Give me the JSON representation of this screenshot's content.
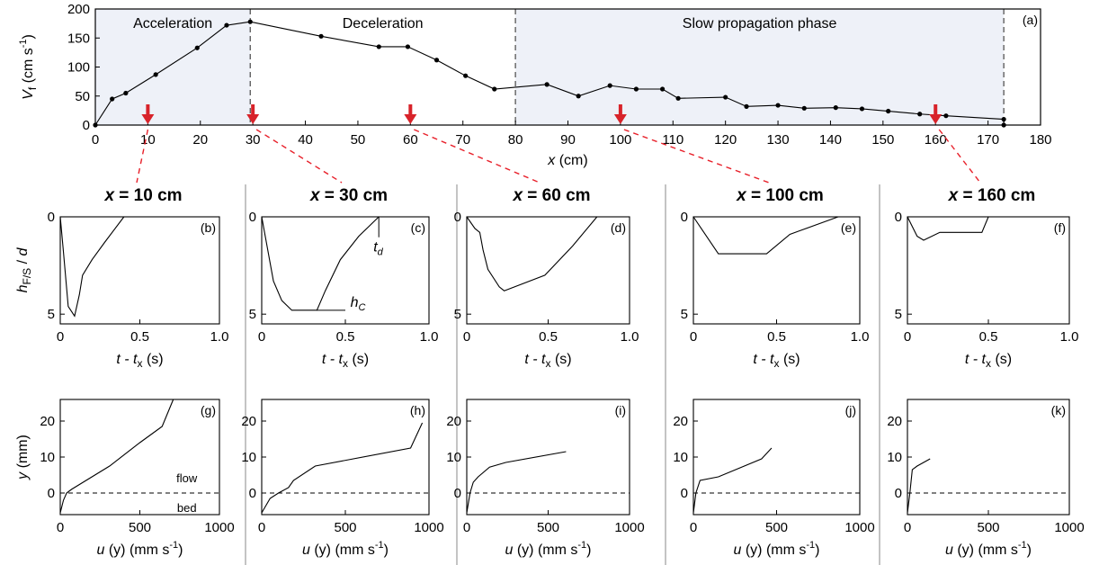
{
  "chart_data": [
    {
      "id": "a",
      "type": "line",
      "panel_label": "(a)",
      "xlabel_italic": "x",
      "xlabel_rest": " (cm)",
      "ylabel": "V",
      "ylabel_sub": "f",
      "ylabel_unit": "(cm s",
      "ylabel_sup": "-1",
      "xlim": [
        0,
        180
      ],
      "ylim": [
        0,
        200
      ],
      "xticks": [
        0,
        10,
        20,
        30,
        40,
        50,
        60,
        70,
        80,
        90,
        100,
        110,
        120,
        130,
        140,
        150,
        160,
        170,
        180
      ],
      "yticks": [
        0,
        50,
        100,
        150,
        200
      ],
      "phases": [
        {
          "label": "Acceleration",
          "x0": 0,
          "x1": 29.5,
          "shaded": true
        },
        {
          "label": "Deceleration",
          "x0": 29.5,
          "x1": 80,
          "shaded": false
        },
        {
          "label": "Slow propagation phase",
          "x0": 80,
          "x1": 173,
          "shaded": true
        }
      ],
      "phase_boundaries": [
        29.5,
        80,
        173
      ],
      "arrow_positions": [
        10,
        30,
        60,
        100,
        160
      ],
      "series": [
        {
          "x": [
            0,
            3.2,
            5.8,
            11.5,
            19.4,
            25,
            29.5,
            43,
            54,
            59.5,
            65,
            70.5,
            76,
            86,
            92,
            98,
            103,
            108,
            111,
            120,
            124,
            130,
            135,
            141,
            146,
            151,
            157,
            162,
            173,
            173
          ],
          "y": [
            0,
            45,
            55,
            87,
            133,
            172,
            178,
            153,
            135,
            135,
            112,
            85,
            62,
            70,
            50,
            68,
            62,
            62,
            46,
            48,
            32,
            34,
            29,
            30,
            28,
            24,
            19,
            16,
            10,
            0
          ]
        }
      ]
    },
    {
      "id": "b",
      "type": "line",
      "panel_label": "(b)",
      "title": "x = 10 cm",
      "ylabel": "h",
      "ylabel_sub": "F/S",
      "ylabel_rest": " / d",
      "xlabel": "t - t",
      "xlabel_sub": "x",
      "xlabel_rest": " (s)",
      "xlim": [
        0,
        1.0
      ],
      "ylim": [
        0,
        5.5
      ],
      "y_inverted": true,
      "xticks": [
        "0",
        "0.5",
        "1.0"
      ],
      "yticks": [
        "0",
        "5"
      ],
      "series": [
        {
          "x": [
            0,
            0.02,
            0.05,
            0.09,
            0.12,
            0.14,
            0.2,
            0.28,
            0.4
          ],
          "y": [
            0,
            1.8,
            4.6,
            5.1,
            4.0,
            3.0,
            2.2,
            1.3,
            0
          ]
        }
      ]
    },
    {
      "id": "c",
      "type": "line",
      "panel_label": "(c)",
      "title": "x = 30 cm",
      "xlabel": "t - t",
      "xlabel_sub": "x",
      "xlabel_rest": " (s)",
      "xlim": [
        0,
        1.0
      ],
      "ylim": [
        0,
        5.5
      ],
      "y_inverted": true,
      "xticks": [
        "0",
        "0.5",
        "1.0"
      ],
      "yticks": [
        "0",
        "5"
      ],
      "annotations": [
        {
          "text": "t",
          "sub": "d"
        },
        {
          "text": "h",
          "sub": "C"
        }
      ],
      "series": [
        {
          "x": [
            0,
            0.07,
            0.12,
            0.18,
            0.24,
            0.33,
            0.38,
            0.47,
            0.58,
            0.7
          ],
          "y": [
            0,
            3.3,
            4.3,
            4.8,
            4.8,
            4.8,
            3.8,
            2.2,
            1.0,
            0
          ]
        }
      ]
    },
    {
      "id": "d",
      "type": "line",
      "panel_label": "(d)",
      "title": "x = 60 cm",
      "xlabel": "t - t",
      "xlabel_sub": "x",
      "xlabel_rest": " (s)",
      "xlim": [
        0,
        1.0
      ],
      "ylim": [
        0,
        5.5
      ],
      "y_inverted": true,
      "xticks": [
        "0",
        "0.5",
        "1.0"
      ],
      "yticks": [
        "0",
        "5"
      ],
      "series": [
        {
          "x": [
            0,
            0.05,
            0.08,
            0.1,
            0.13,
            0.2,
            0.23,
            0.48,
            0.65,
            0.8
          ],
          "y": [
            0,
            0.6,
            0.8,
            1.7,
            2.7,
            3.6,
            3.8,
            3.0,
            1.5,
            0
          ]
        }
      ]
    },
    {
      "id": "e",
      "type": "line",
      "panel_label": "(e)",
      "title": "x = 100 cm",
      "xlabel": "t - t",
      "xlabel_sub": "x",
      "xlabel_rest": " (s)",
      "xlim": [
        0,
        1.0
      ],
      "ylim": [
        0,
        5.5
      ],
      "y_inverted": true,
      "xticks": [
        "0",
        "0.5",
        "1.0"
      ],
      "yticks": [
        "0",
        "5"
      ],
      "series": [
        {
          "x": [
            0,
            0.15,
            0.44,
            0.58,
            0.87
          ],
          "y": [
            0,
            1.9,
            1.9,
            0.9,
            0
          ]
        }
      ]
    },
    {
      "id": "f",
      "type": "line",
      "panel_label": "(f)",
      "title": "x = 160 cm",
      "xlabel": "t - t",
      "xlabel_sub": "x",
      "xlabel_rest": " (s)",
      "xlim": [
        0,
        1.0
      ],
      "ylim": [
        0,
        5.5
      ],
      "y_inverted": true,
      "xticks": [
        "0",
        "0.5",
        "1.0"
      ],
      "yticks": [
        "0",
        "5"
      ],
      "series": [
        {
          "x": [
            0,
            0.06,
            0.1,
            0.2,
            0.46,
            0.5
          ],
          "y": [
            0,
            1.0,
            1.2,
            0.8,
            0.8,
            0
          ]
        }
      ]
    },
    {
      "id": "g",
      "type": "line",
      "panel_label": "(g)",
      "ylabel": "y",
      "ylabel_rest": " (mm)",
      "xlabel": "u",
      "xlabel_rest": " (y) (mm s",
      "xlabel_sup": "-1",
      "xlabel_close": ")",
      "xlim": [
        0,
        1000
      ],
      "ylim": [
        -6,
        26
      ],
      "xticks": [
        "0",
        "500",
        "1000"
      ],
      "yticks": [
        "0",
        "10",
        "20"
      ],
      "annotations": [
        {
          "text": "flow"
        },
        {
          "text": "bed"
        }
      ],
      "series": [
        {
          "x": [
            0,
            20,
            40,
            70,
            310,
            500,
            640,
            710
          ],
          "y": [
            -5.5,
            -2,
            0,
            1,
            7.5,
            14,
            18.5,
            26
          ]
        }
      ]
    },
    {
      "id": "h",
      "type": "line",
      "panel_label": "(h)",
      "xlabel": "u",
      "xlabel_rest": " (y) (mm s",
      "xlabel_sup": "-1",
      "xlabel_close": ")",
      "xlim": [
        0,
        1000
      ],
      "ylim": [
        -6,
        26
      ],
      "xticks": [
        "0",
        "500",
        "1000"
      ],
      "yticks": [
        "0",
        "10",
        "20"
      ],
      "series": [
        {
          "x": [
            0,
            50,
            100,
            160,
            190,
            320,
            890,
            960
          ],
          "y": [
            -5.5,
            -1.5,
            0,
            1.5,
            3.5,
            7.5,
            12.5,
            19.5
          ]
        }
      ]
    },
    {
      "id": "i",
      "type": "line",
      "panel_label": "(i)",
      "xlabel": "u",
      "xlabel_rest": " (y) (mm s",
      "xlabel_sup": "-1",
      "xlabel_close": ")",
      "xlim": [
        0,
        1000
      ],
      "ylim": [
        -6,
        26
      ],
      "xticks": [
        "0",
        "500",
        "1000"
      ],
      "yticks": [
        "0",
        "10",
        "20"
      ],
      "series": [
        {
          "x": [
            0,
            20,
            40,
            70,
            140,
            240,
            610
          ],
          "y": [
            -5.5,
            0,
            3,
            4.5,
            7.2,
            8.5,
            11.5
          ]
        }
      ]
    },
    {
      "id": "j",
      "type": "line",
      "panel_label": "(j)",
      "xlabel": "u",
      "xlabel_rest": " (y) (mm s",
      "xlabel_sup": "-1",
      "xlabel_close": ")",
      "xlim": [
        0,
        1000
      ],
      "ylim": [
        -6,
        26
      ],
      "xticks": [
        "0",
        "500",
        "1000"
      ],
      "yticks": [
        "0",
        "10",
        "20"
      ],
      "series": [
        {
          "x": [
            0,
            15,
            40,
            150,
            410,
            470
          ],
          "y": [
            -5.5,
            0,
            3.5,
            4.5,
            9.5,
            12.5
          ]
        }
      ]
    },
    {
      "id": "k",
      "type": "line",
      "panel_label": "(k)",
      "xlabel": "u",
      "xlabel_rest": " (y) (mm s",
      "xlabel_sup": "-1",
      "xlabel_close": ")",
      "xlim": [
        0,
        1000
      ],
      "ylim": [
        -6,
        26
      ],
      "xticks": [
        "0",
        "500",
        "1000"
      ],
      "yticks": [
        "0",
        "10",
        "20"
      ],
      "series": [
        {
          "x": [
            0,
            15,
            30,
            60,
            140
          ],
          "y": [
            -5.5,
            0,
            6.5,
            7.5,
            9.5
          ]
        }
      ]
    }
  ],
  "colors": {
    "shade": "#eef1f8",
    "arrow": "#d8232a",
    "connector": "#e8202a",
    "line": "#000000",
    "divider": "#888888"
  }
}
